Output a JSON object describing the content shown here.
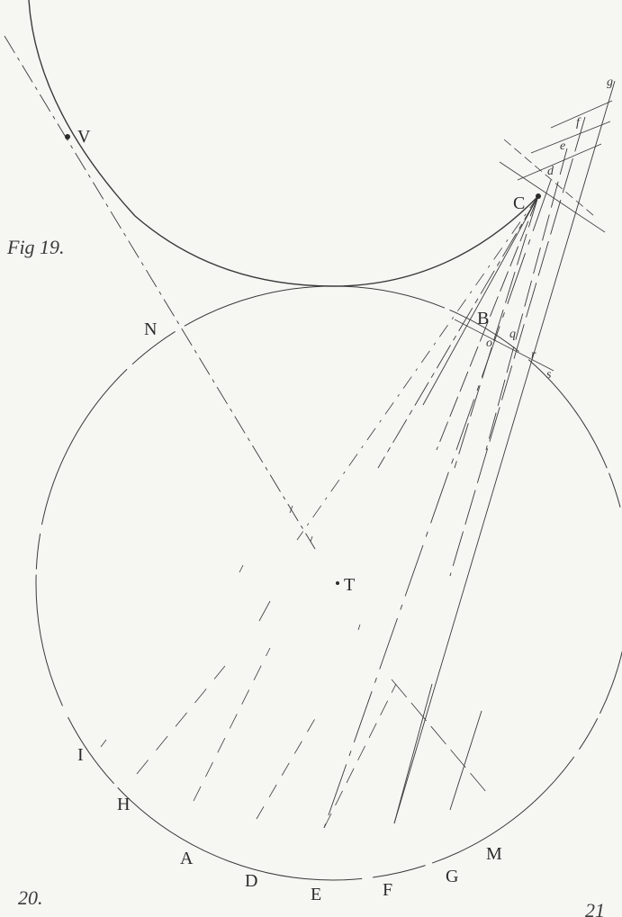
{
  "figure_labels": {
    "fig19": "Fig 19.",
    "fig20": "20.",
    "fig21": "21"
  },
  "points": {
    "V": "V",
    "C": "C",
    "N": "N",
    "B": "B",
    "T": "T",
    "I": "I",
    "H": "H",
    "A": "A",
    "D": "D",
    "E": "E",
    "F": "F",
    "G": "G",
    "M": "M"
  },
  "small_points": {
    "o": "o",
    "q": "q",
    "r": "r",
    "s": "s",
    "d": "d",
    "e": "e",
    "f": "f",
    "g": "g"
  },
  "colors": {
    "ink": "#3a3a3a",
    "paper": "#f6f6f3"
  }
}
